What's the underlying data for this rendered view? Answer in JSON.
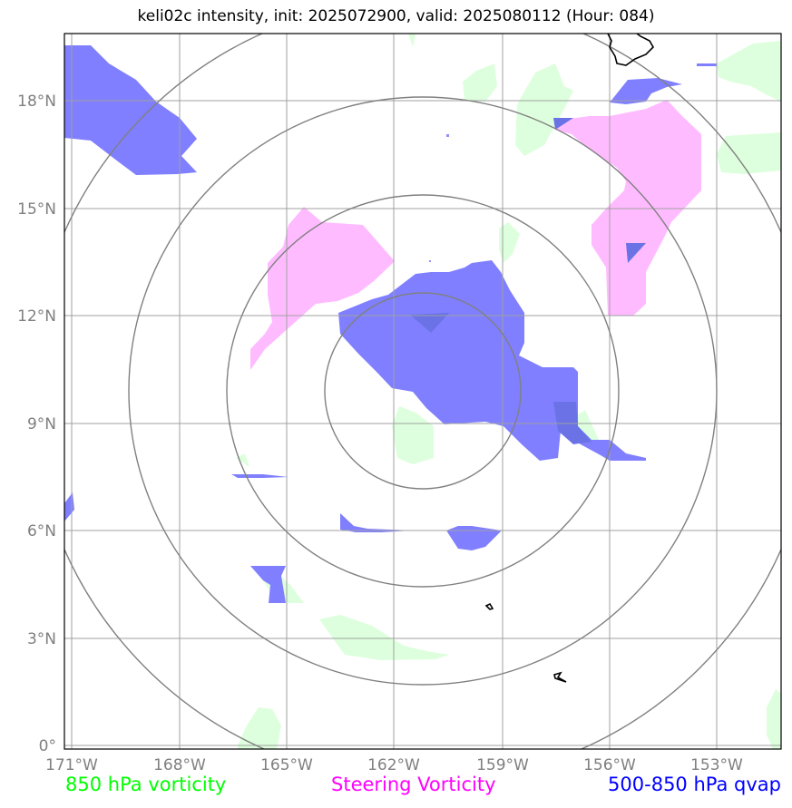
{
  "title": "keli02c intensity, init: 2025072900, valid: 2025080112 (Hour: 084)",
  "map": {
    "lon_labels": [
      "171°W",
      "168°W",
      "165°W",
      "162°W",
      "159°W",
      "156°W",
      "153°W"
    ],
    "lat_labels": [
      "0°",
      "3°N",
      "6°N",
      "9°N",
      "12°N",
      "15°N",
      "18°N"
    ],
    "center": "161°W, 10°N",
    "range_rings": 4
  },
  "legend": {
    "vorticity": {
      "label": "850 hPa vorticity",
      "color": "#00ff00"
    },
    "steering": {
      "label": "Steering Vorticity",
      "color": "#ff00ff"
    },
    "qvap": {
      "label": "500-850 hPa qvap",
      "color": "#0000ff"
    }
  },
  "colors": {
    "vorticity_fill": "#ddffdd",
    "steering_fill": "#ffbbff",
    "qvap_fill": "#7f7fff",
    "grid": "#a0a0a0",
    "rings": "#808080",
    "coast": "#000000"
  }
}
